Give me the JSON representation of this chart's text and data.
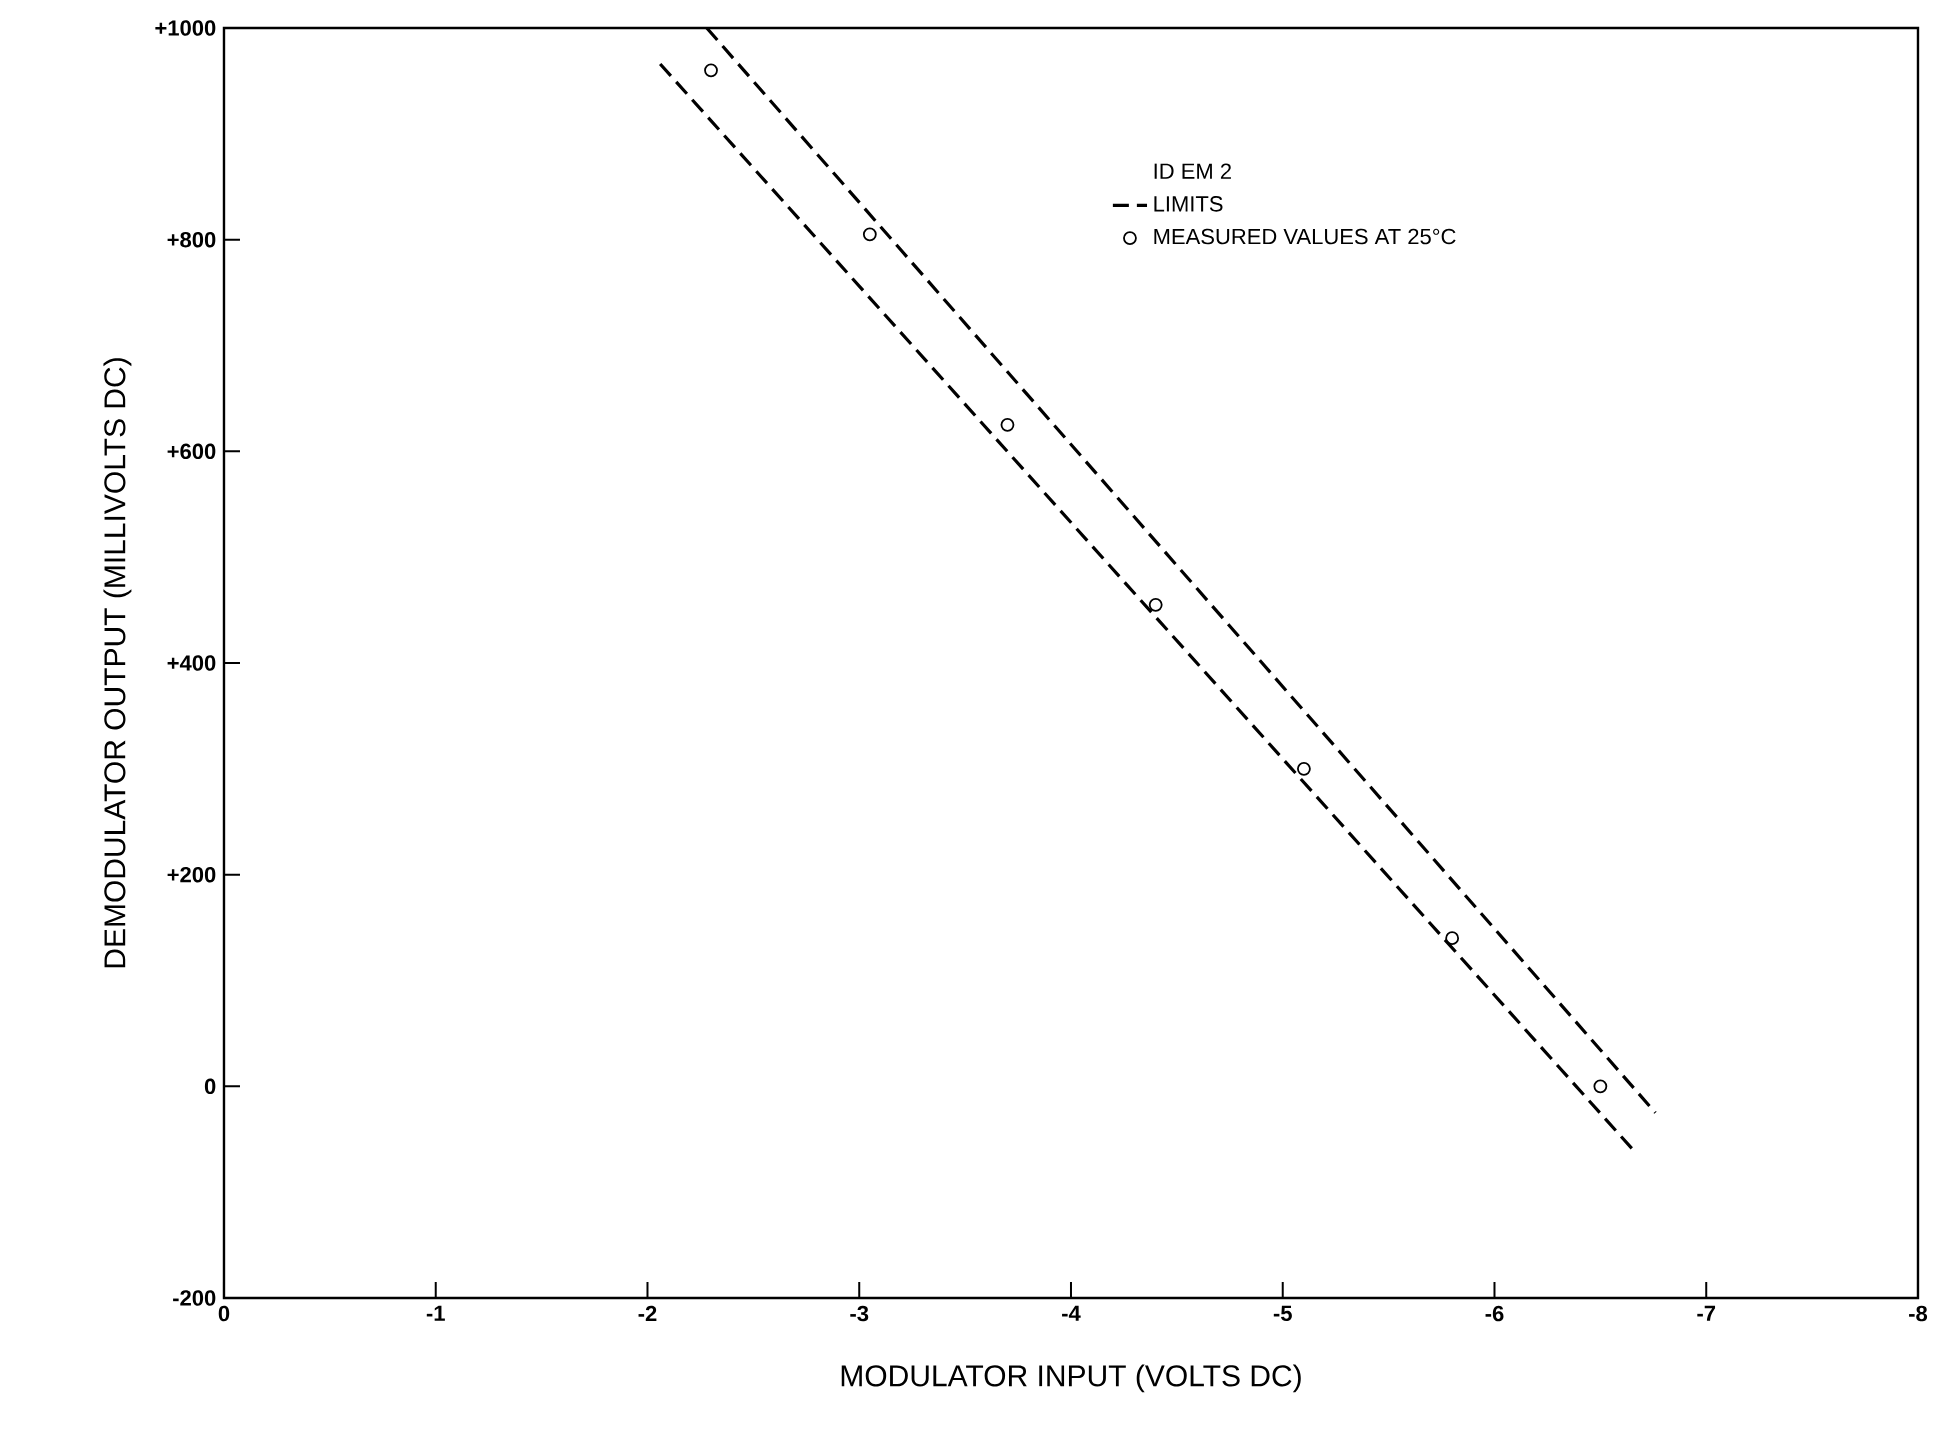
{
  "chart_data": {
    "type": "line",
    "xlabel": "MODULATOR INPUT (VOLTS DC)",
    "ylabel": "DEMODULATOR OUTPUT (MILLIVOLTS DC)",
    "legend_title": "ID EM 2",
    "xlim": [
      0,
      -8
    ],
    "xticks": [
      0,
      -1,
      -2,
      -3,
      -4,
      -5,
      -6,
      -7,
      -8
    ],
    "ylim": [
      -200,
      1000
    ],
    "yticks": [
      {
        "value": -200,
        "label": "-200"
      },
      {
        "value": 0,
        "label": "0"
      },
      {
        "value": 200,
        "label": "+200"
      },
      {
        "value": 400,
        "label": "+400"
      },
      {
        "value": 600,
        "label": "+600"
      },
      {
        "value": 800,
        "label": "+800"
      },
      {
        "value": 1000,
        "label": "+1000"
      }
    ],
    "grid": false,
    "legend": "top right",
    "series": [
      {
        "name": "LIMITS",
        "line_style": "dashed",
        "marker": "none",
        "color": "#000000",
        "x": [
          -2.28,
          -6.76
        ],
        "values": [
          1000,
          -25
        ]
      },
      {
        "line_style": "dashed",
        "marker": "none",
        "color": "#000000",
        "x": [
          -2.06,
          -6.65
        ],
        "values": [
          966,
          -59
        ]
      },
      {
        "name": "MEASURED VALUES AT 25°C",
        "type": "scatter",
        "marker": "circle",
        "color": "#000000",
        "x": [
          -2.3,
          -3.05,
          -3.7,
          -4.4,
          -5.1,
          -5.8,
          -6.5
        ],
        "values": [
          960,
          805,
          625,
          455,
          300,
          140,
          0
        ]
      }
    ]
  }
}
